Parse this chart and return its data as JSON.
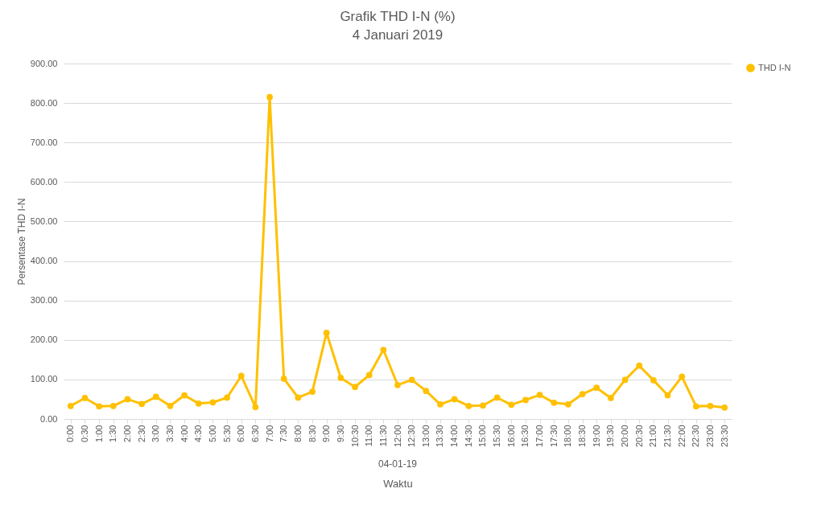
{
  "chart_data": {
    "type": "line",
    "title": "Grafik THD I-N (%)",
    "subtitle": "4 Januari 2019",
    "xlabel": "Waktu",
    "ylabel": "Persentase THD I-N",
    "annotations": [
      "04-01-19"
    ],
    "categories": [
      "0:00",
      "0:30",
      "1:00",
      "1:30",
      "2:00",
      "2:30",
      "3:00",
      "3:30",
      "4:00",
      "4:30",
      "5:00",
      "5:30",
      "6:00",
      "6:30",
      "7:00",
      "7:30",
      "8:00",
      "8:30",
      "9:00",
      "9:30",
      "10:30",
      "11:00",
      "11:30",
      "12:00",
      "12:30",
      "13:00",
      "13:30",
      "14:00",
      "14:30",
      "15:00",
      "15:30",
      "16:00",
      "16:30",
      "17:00",
      "17:30",
      "18:00",
      "18:30",
      "19:00",
      "19:30",
      "20:00",
      "20:30",
      "21:00",
      "21:30",
      "22:00",
      "22:30",
      "23:00",
      "23:30"
    ],
    "series": [
      {
        "name": "THD I-N",
        "color": "#ffc000",
        "values": [
          33,
          53,
          32,
          33,
          50,
          38,
          56,
          33,
          60,
          39,
          42,
          54,
          109,
          30,
          815,
          102,
          54,
          69,
          218,
          104,
          81,
          111,
          175,
          86,
          99,
          71,
          37,
          50,
          33,
          34,
          54,
          36,
          48,
          61,
          41,
          37,
          63,
          79,
          53,
          99,
          135,
          98,
          60,
          107,
          32,
          33,
          29
        ]
      }
    ],
    "ylim": [
      0,
      900
    ],
    "yticks": [
      {
        "value": 0,
        "label": "0.00"
      },
      {
        "value": 100,
        "label": "100.00"
      },
      {
        "value": 200,
        "label": "200.00"
      },
      {
        "value": 300,
        "label": "300.00"
      },
      {
        "value": 400,
        "label": "400.00"
      },
      {
        "value": 500,
        "label": "500.00"
      },
      {
        "value": 600,
        "label": "600.00"
      },
      {
        "value": 700,
        "label": "700.00"
      },
      {
        "value": 800,
        "label": "800.00"
      },
      {
        "value": 900,
        "label": "900.00"
      }
    ],
    "grid": "y",
    "legend": "right",
    "marker": "circle",
    "line_style": "solid"
  }
}
